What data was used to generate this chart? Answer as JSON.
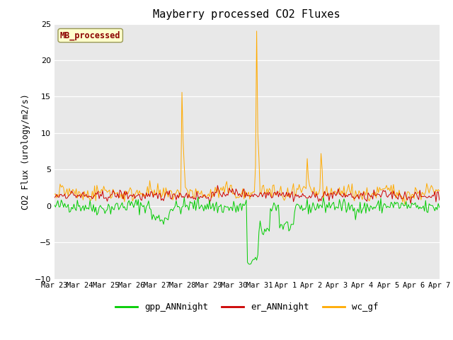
{
  "title": "Mayberry processed CO2 Fluxes",
  "ylabel": "CO2 Flux (urology/m2/s)",
  "ylim": [
    -10,
    25
  ],
  "yticks": [
    -10,
    -5,
    0,
    5,
    10,
    15,
    20,
    25
  ],
  "bg_color": "#e8e8e8",
  "legend_label": "MB_processed",
  "legend_text_color": "#8b0000",
  "legend_bg": "#ffffcc",
  "n_points": 336,
  "x_tick_labels": [
    "Mar 23",
    "Mar 24",
    "Mar 25",
    "Mar 26",
    "Mar 27",
    "Mar 28",
    "Mar 29",
    "Mar 30",
    "Mar 31",
    "Apr 1",
    "Apr 2",
    "Apr 3",
    "Apr 4",
    "Apr 5",
    "Apr 6",
    "Apr 7"
  ],
  "gpp_color": "#00cc00",
  "er_color": "#cc0000",
  "wc_color": "#ffaa00",
  "line_width": 0.7,
  "series_labels": [
    "gpp_ANNnight",
    "er_ANNnight",
    "wc_gf"
  ]
}
